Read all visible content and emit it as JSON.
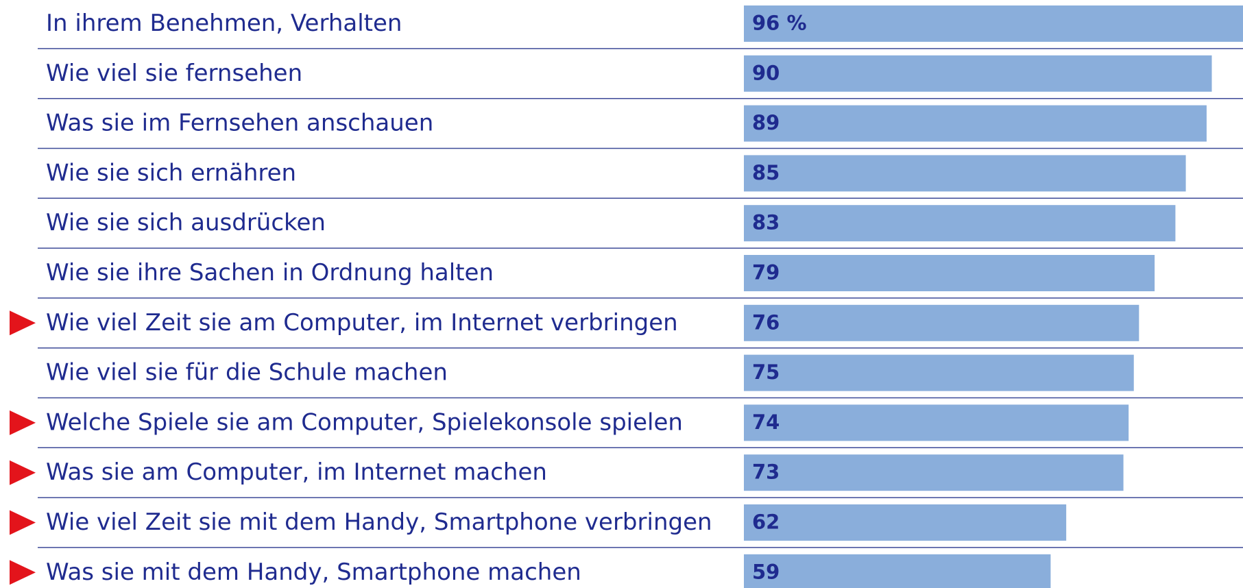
{
  "chart_data": {
    "type": "barh",
    "categories": [
      "In ihrem Benehmen, Verhalten",
      "Wie viel sie fernsehen",
      "Was sie im Fernsehen anschauen",
      "Wie sie sich ernähren",
      "Wie sie sich ausdrücken",
      "Wie sie ihre Sachen in Ordnung halten",
      "Wie viel Zeit sie am Computer, im Internet verbringen",
      "Wie viel sie für die Schule machen",
      "Welche Spiele sie am Computer, Spielekonsole spielen",
      "Was sie am Computer, im Internet machen",
      "Wie viel Zeit sie mit dem Handy, Smartphone verbringen",
      "Was sie mit dem Handy, Smartphone machen"
    ],
    "values": [
      96,
      90,
      89,
      85,
      83,
      79,
      76,
      75,
      74,
      73,
      62,
      59
    ],
    "value_labels": [
      "96 %",
      "90",
      "89",
      "85",
      "83",
      "79",
      "76",
      "75",
      "74",
      "73",
      "62",
      "59"
    ],
    "highlight": [
      false,
      false,
      false,
      false,
      false,
      false,
      true,
      false,
      true,
      true,
      true,
      true
    ],
    "color": "#8aaedb",
    "highlight_color": "#e3141b",
    "xlim": [
      0,
      96
    ]
  }
}
